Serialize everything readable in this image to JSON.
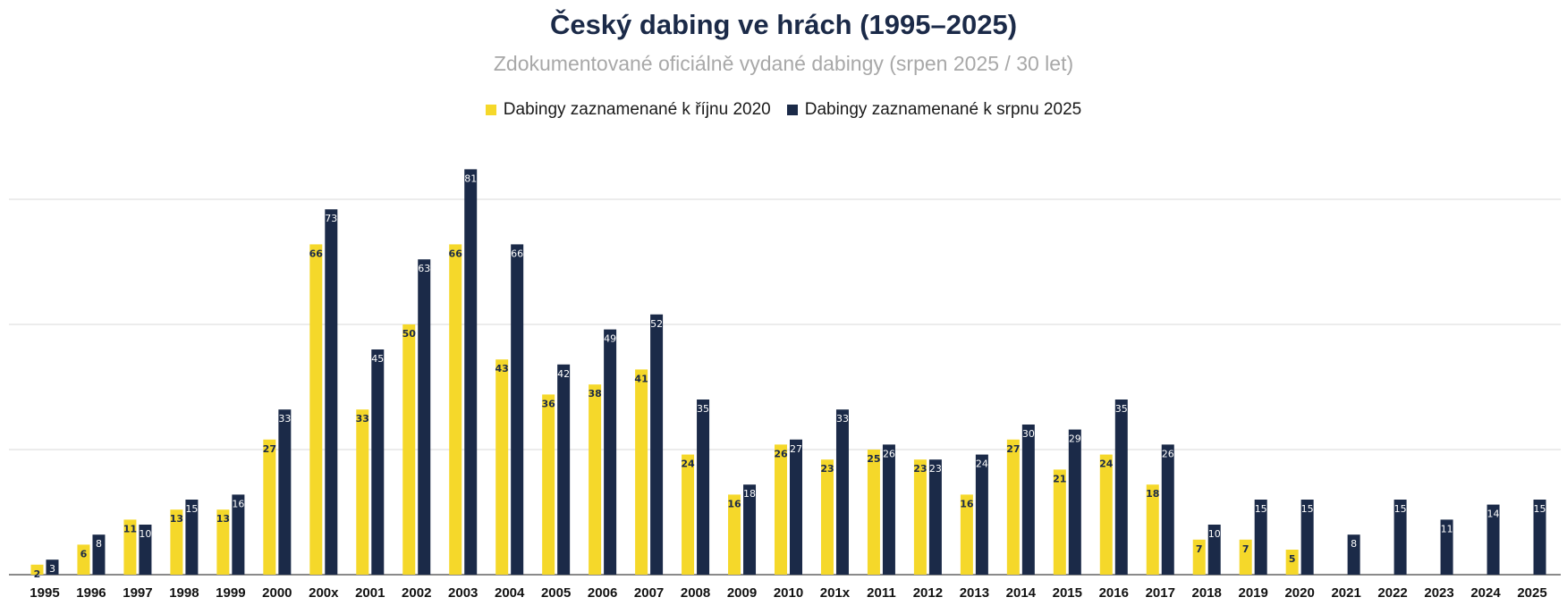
{
  "chart_data": {
    "type": "bar",
    "title": "Český dabing ve hrách (1995–2025)",
    "subtitle": "Zdokumentované oficiálně vydané dabingy (srpen 2025 / 30 let)",
    "xlabel": "",
    "ylabel": "",
    "ylim": [
      0,
      90
    ],
    "grid": true,
    "legend_position": "top-center",
    "categories": [
      "1995",
      "1996",
      "1997",
      "1998",
      "1999",
      "2000",
      "200x",
      "2001",
      "2002",
      "2003",
      "2004",
      "2005",
      "2006",
      "2007",
      "2008",
      "2009",
      "2010",
      "201x",
      "2011",
      "2012",
      "2013",
      "2014",
      "2015",
      "2016",
      "2017",
      "2018",
      "2019",
      "2020",
      "2021",
      "2022",
      "2023",
      "2024",
      "2025"
    ],
    "series": [
      {
        "name": "Dabingy zaznamenané k říjnu 2020",
        "color": "#f5d82a",
        "label_color": "#1b2a48",
        "values": [
          2,
          6,
          11,
          13,
          13,
          27,
          66,
          33,
          50,
          66,
          43,
          36,
          38,
          41,
          24,
          16,
          26,
          23,
          25,
          23,
          16,
          27,
          21,
          24,
          18,
          7,
          7,
          5,
          null,
          null,
          null,
          null,
          null
        ]
      },
      {
        "name": "Dabingy zaznamenané k srpnu 2025",
        "color": "#1b2a48",
        "label_color": "#ffffff",
        "values": [
          3,
          8,
          10,
          15,
          16,
          33,
          73,
          45,
          63,
          81,
          66,
          42,
          49,
          52,
          35,
          18,
          27,
          33,
          26,
          23,
          24,
          30,
          29,
          35,
          26,
          10,
          15,
          15,
          8,
          15,
          11,
          14,
          15
        ]
      }
    ]
  }
}
